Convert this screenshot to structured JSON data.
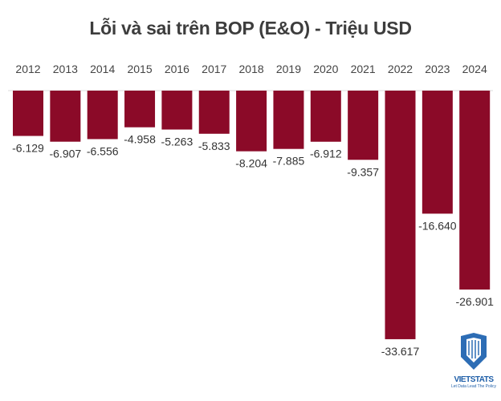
{
  "chart_data": {
    "type": "bar",
    "title": "Lỗi và sai trên BOP (E&O) - Triệu USD",
    "categories": [
      "2012",
      "2013",
      "2014",
      "2015",
      "2016",
      "2017",
      "2018",
      "2019",
      "2020",
      "2021",
      "2022",
      "2023",
      "2024"
    ],
    "values": [
      -6.129,
      -6.907,
      -6.556,
      -4.958,
      -5.263,
      -5.833,
      -8.204,
      -7.885,
      -6.912,
      -9.357,
      -33.617,
      -16.64,
      -26.901
    ],
    "data_labels": [
      "-6.129",
      "-6.907",
      "-6.556",
      "-4.958",
      "-5.263",
      "-5.833",
      "-8.204",
      "-7.885",
      "-6.912",
      "-9.357",
      "-33.617",
      "-16.640",
      "-26.901"
    ],
    "xlabel": "",
    "ylabel": "",
    "ylim": [
      -35,
      0
    ],
    "grid": false,
    "bar_color": "#8b0a28"
  },
  "logo": {
    "brand": "VIETSTATS",
    "tagline": "Let Data Lead The Policy"
  }
}
